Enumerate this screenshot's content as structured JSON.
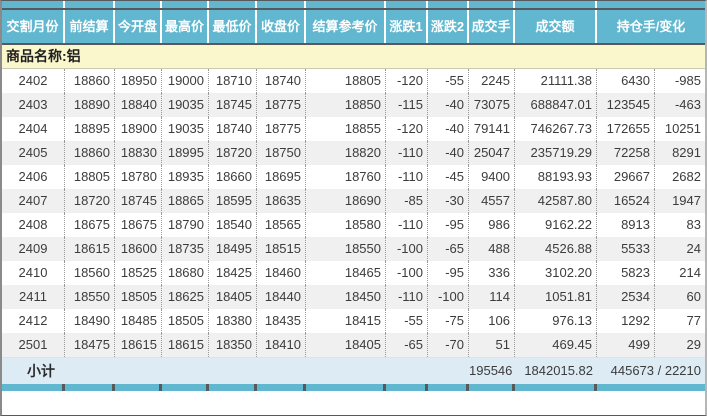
{
  "header": {
    "columns": [
      "交割月份",
      "前结算",
      "今开盘",
      "最高价",
      "最低价",
      "收盘价",
      "结算参考价",
      "涨跌1",
      "涨跌2",
      "成交手",
      "成交额",
      "持仓手/变化"
    ]
  },
  "product": {
    "label": "商品名称:铝"
  },
  "rows": [
    {
      "month": "2402",
      "prev_settle": "18860",
      "open": "18950",
      "high": "19000",
      "low": "18710",
      "close": "18740",
      "settle_ref": "18805",
      "chg1": "-120",
      "chg2": "-55",
      "volume": "2245",
      "turnover": "21111.38",
      "oi": "6430",
      "oi_chg": "-985"
    },
    {
      "month": "2403",
      "prev_settle": "18890",
      "open": "18840",
      "high": "19035",
      "low": "18745",
      "close": "18775",
      "settle_ref": "18850",
      "chg1": "-115",
      "chg2": "-40",
      "volume": "73075",
      "turnover": "688847.01",
      "oi": "123545",
      "oi_chg": "-463"
    },
    {
      "month": "2404",
      "prev_settle": "18895",
      "open": "18900",
      "high": "19035",
      "low": "18740",
      "close": "18775",
      "settle_ref": "18855",
      "chg1": "-120",
      "chg2": "-40",
      "volume": "79141",
      "turnover": "746267.73",
      "oi": "172655",
      "oi_chg": "10251"
    },
    {
      "month": "2405",
      "prev_settle": "18860",
      "open": "18830",
      "high": "18995",
      "low": "18720",
      "close": "18750",
      "settle_ref": "18820",
      "chg1": "-110",
      "chg2": "-40",
      "volume": "25047",
      "turnover": "235719.29",
      "oi": "72258",
      "oi_chg": "8291"
    },
    {
      "month": "2406",
      "prev_settle": "18805",
      "open": "18780",
      "high": "18935",
      "low": "18660",
      "close": "18695",
      "settle_ref": "18760",
      "chg1": "-110",
      "chg2": "-45",
      "volume": "9400",
      "turnover": "88193.93",
      "oi": "29667",
      "oi_chg": "2682"
    },
    {
      "month": "2407",
      "prev_settle": "18720",
      "open": "18745",
      "high": "18865",
      "low": "18595",
      "close": "18635",
      "settle_ref": "18690",
      "chg1": "-85",
      "chg2": "-30",
      "volume": "4557",
      "turnover": "42587.80",
      "oi": "16524",
      "oi_chg": "1947"
    },
    {
      "month": "2408",
      "prev_settle": "18675",
      "open": "18675",
      "high": "18790",
      "low": "18540",
      "close": "18565",
      "settle_ref": "18580",
      "chg1": "-110",
      "chg2": "-95",
      "volume": "986",
      "turnover": "9162.22",
      "oi": "8913",
      "oi_chg": "83"
    },
    {
      "month": "2409",
      "prev_settle": "18615",
      "open": "18600",
      "high": "18735",
      "low": "18495",
      "close": "18515",
      "settle_ref": "18550",
      "chg1": "-100",
      "chg2": "-65",
      "volume": "488",
      "turnover": "4526.88",
      "oi": "5533",
      "oi_chg": "24"
    },
    {
      "month": "2410",
      "prev_settle": "18560",
      "open": "18525",
      "high": "18680",
      "low": "18425",
      "close": "18460",
      "settle_ref": "18465",
      "chg1": "-100",
      "chg2": "-95",
      "volume": "336",
      "turnover": "3102.20",
      "oi": "5823",
      "oi_chg": "214"
    },
    {
      "month": "2411",
      "prev_settle": "18550",
      "open": "18505",
      "high": "18625",
      "low": "18405",
      "close": "18440",
      "settle_ref": "18450",
      "chg1": "-110",
      "chg2": "-100",
      "volume": "114",
      "turnover": "1051.81",
      "oi": "2534",
      "oi_chg": "60"
    },
    {
      "month": "2412",
      "prev_settle": "18490",
      "open": "18485",
      "high": "18505",
      "low": "18380",
      "close": "18435",
      "settle_ref": "18415",
      "chg1": "-55",
      "chg2": "-75",
      "volume": "106",
      "turnover": "976.13",
      "oi": "1292",
      "oi_chg": "77"
    },
    {
      "month": "2501",
      "prev_settle": "18475",
      "open": "18615",
      "high": "18615",
      "low": "18350",
      "close": "18410",
      "settle_ref": "18405",
      "chg1": "-65",
      "chg2": "-70",
      "volume": "51",
      "turnover": "469.45",
      "oi": "499",
      "oi_chg": "29"
    }
  ],
  "subtotal": {
    "label": "小计",
    "volume": "195546",
    "turnover": "1842015.82",
    "oi_and_chg": "445673 / 22210"
  },
  "colors": {
    "header_bg": "#60B7CF",
    "header_text": "#FFFFFF",
    "product_row_bg": "#FBF7CC",
    "row_alt_bg": "#F0F0F0",
    "subtotal_bg": "#DCEBF4",
    "divider_dark": "#58595B",
    "text": "#3C3C3C"
  }
}
